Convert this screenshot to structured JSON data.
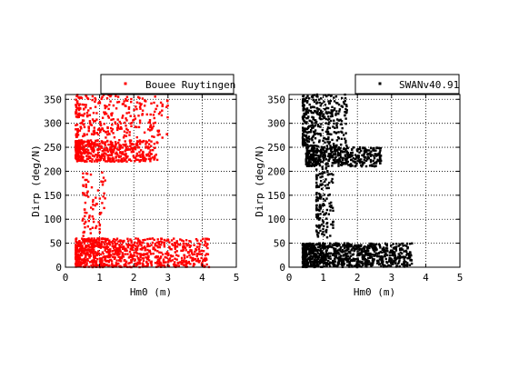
{
  "chart_data": [
    {
      "type": "scatter",
      "panel": "left",
      "xlabel": "Hm0 (m)",
      "ylabel": "Dirp (deg/N)",
      "xlim": [
        0,
        5
      ],
      "ylim": [
        0,
        360
      ],
      "xticks": [
        0,
        1,
        2,
        3,
        4,
        5
      ],
      "yticks": [
        0,
        50,
        100,
        150,
        200,
        250,
        300,
        350
      ],
      "grid": true,
      "legend_position": "top-right, above axes",
      "series": [
        {
          "name": "Bouee Ruytingen",
          "color": "#ff0000",
          "clusters": [
            {
              "x_range": [
                0.3,
                4.2
              ],
              "y_range": [
                0,
                60
              ],
              "count": 900
            },
            {
              "x_range": [
                0.5,
                1.2
              ],
              "y_range": [
                60,
                200
              ],
              "count": 80
            },
            {
              "x_range": [
                0.3,
                2.7
              ],
              "y_range": [
                220,
                265
              ],
              "count": 500
            },
            {
              "x_range": [
                0.3,
                3.0
              ],
              "y_range": [
                270,
                360
              ],
              "count": 300
            }
          ]
        }
      ]
    },
    {
      "type": "scatter",
      "panel": "right",
      "xlabel": "Hm0 (m)",
      "ylabel": "Dirp (deg/N)",
      "xlim": [
        0,
        5
      ],
      "ylim": [
        0,
        360
      ],
      "xticks": [
        0,
        1,
        2,
        3,
        4,
        5
      ],
      "yticks": [
        0,
        50,
        100,
        150,
        200,
        250,
        300,
        350
      ],
      "grid": true,
      "legend_position": "top-right, above axes",
      "series": [
        {
          "name": "SWANv40.91",
          "color": "#000000",
          "clusters": [
            {
              "x_range": [
                0.4,
                3.6
              ],
              "y_range": [
                0,
                50
              ],
              "count": 900
            },
            {
              "x_range": [
                0.8,
                1.3
              ],
              "y_range": [
                60,
                210
              ],
              "count": 150
            },
            {
              "x_range": [
                0.5,
                2.7
              ],
              "y_range": [
                210,
                250
              ],
              "count": 450
            },
            {
              "x_range": [
                0.4,
                1.7
              ],
              "y_range": [
                250,
                360
              ],
              "count": 350
            }
          ]
        }
      ]
    }
  ]
}
